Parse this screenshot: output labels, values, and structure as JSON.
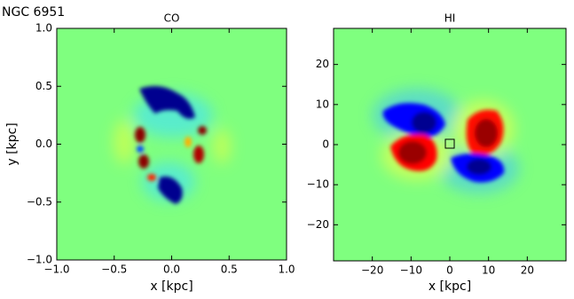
{
  "figure_title": "NGC 6951",
  "chart_data": [
    {
      "type": "heatmap",
      "title": "CO",
      "xlabel": "x [kpc]",
      "ylabel": "y [kpc]",
      "xlim": [
        -1,
        1
      ],
      "ylim": [
        -1,
        1
      ],
      "xticks": [
        {
          "value": -1,
          "label": "−1.0"
        },
        {
          "value": -0.5,
          "label": "−0.5"
        },
        {
          "value": 0,
          "label": "0.0"
        },
        0.5,
        {
          "value": 1,
          "label": "1.0"
        }
      ],
      "yticks": [
        {
          "value": -1,
          "label": "−1.0"
        },
        {
          "value": -0.5,
          "label": "−0.5"
        },
        {
          "value": 0,
          "label": "0.0"
        },
        0.5,
        {
          "value": 1,
          "label": "1.0"
        }
      ]
    },
    {
      "type": "heatmap",
      "title": "HI",
      "xlabel": "x [kpc]",
      "xlim": [
        -30,
        30
      ],
      "ylim": [
        -29,
        29
      ],
      "xticks": [
        {
          "value": -20,
          "label": "−20"
        },
        {
          "value": -10,
          "label": "−10"
        },
        0,
        10,
        20
      ],
      "yticks": [
        {
          "value": -20,
          "label": "−20"
        },
        {
          "value": -10,
          "label": "−10"
        },
        0,
        10,
        20
      ]
    }
  ]
}
